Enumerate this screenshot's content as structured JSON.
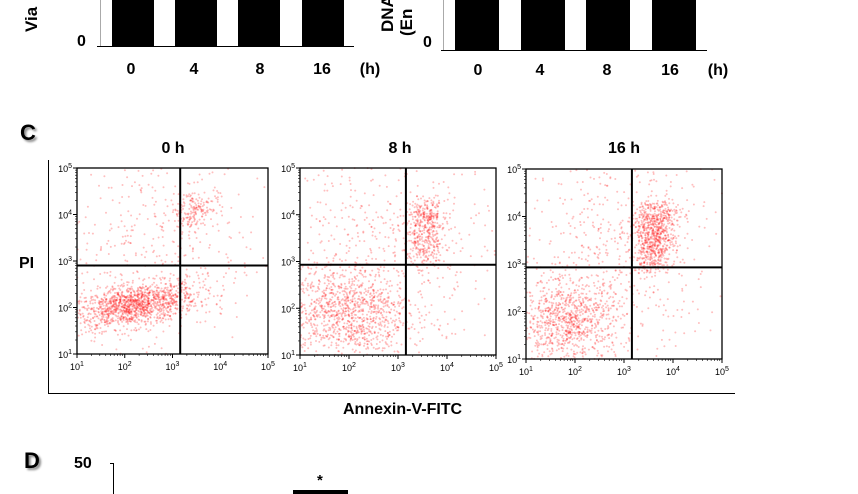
{
  "panel_a": {
    "ylabel": "Via",
    "y_zero": "0",
    "x_ticks": [
      "0",
      "4",
      "8",
      "16"
    ],
    "x_unit": "(h)"
  },
  "panel_b": {
    "ylabel_line1": "DNA",
    "ylabel_line2": "(En",
    "y_zero": "0",
    "x_ticks": [
      "0",
      "4",
      "8",
      "16"
    ],
    "x_unit": "(h)"
  },
  "panel_c": {
    "label": "C",
    "ylabel": "PI",
    "xlabel": "Annexin-V-FITC"
  },
  "panel_d": {
    "label": "D",
    "y_top": "50",
    "annotation": "*"
  },
  "chart_data": [
    {
      "type": "scatter",
      "title": "0 h",
      "xscale": "log",
      "yscale": "log",
      "xlim": [
        10,
        100000
      ],
      "ylim": [
        10,
        100000
      ],
      "x_ticks": [
        "10^1",
        "10^2",
        "10^3",
        "10^4",
        "10^5"
      ],
      "y_ticks": [
        "10^1",
        "10^2",
        "10^3",
        "10^4",
        "10^5"
      ],
      "gate": {
        "x": 1450,
        "y": 800
      },
      "point_color": "#ff0000",
      "clusters": [
        {
          "cx": 160,
          "cy": 110,
          "n": 1300,
          "sdx": 0.3,
          "sdy": 0.1
        },
        {
          "cx": 2800,
          "cy": 13000,
          "n": 180,
          "sdx": 0.12,
          "sdy": 0.1
        },
        {
          "cx": 400,
          "cy": 1500,
          "n": 450,
          "sdx": 0.5,
          "sdy": 0.6
        }
      ]
    },
    {
      "type": "scatter",
      "title": "8 h",
      "xscale": "log",
      "yscale": "log",
      "xlim": [
        10,
        100000
      ],
      "ylim": [
        10,
        100000
      ],
      "x_ticks": [
        "10^1",
        "10^2",
        "10^3",
        "10^4",
        "10^5"
      ],
      "y_ticks": [
        "10^1",
        "10^2",
        "10^3",
        "10^4",
        "10^5"
      ],
      "gate": {
        "x": 1450,
        "y": 850
      },
      "point_color": "#ff0000",
      "clusters": [
        {
          "cx": 90,
          "cy": 75,
          "n": 1000,
          "sdx": 0.28,
          "sdy": 0.22
        },
        {
          "cx": 4000,
          "cy": 10000,
          "n": 150,
          "sdx": 0.08,
          "sdy": 0.07
        },
        {
          "cx": 3500,
          "cy": 3000,
          "n": 300,
          "sdx": 0.1,
          "sdy": 0.18
        },
        {
          "cx": 500,
          "cy": 1500,
          "n": 550,
          "sdx": 0.5,
          "sdy": 0.6
        }
      ]
    },
    {
      "type": "scatter",
      "title": "16 h",
      "xscale": "log",
      "yscale": "log",
      "xlim": [
        10,
        100000
      ],
      "ylim": [
        10,
        100000
      ],
      "x_ticks": [
        "10^1",
        "10^2",
        "10^3",
        "10^4",
        "10^5"
      ],
      "y_ticks": [
        "10^1",
        "10^2",
        "10^3",
        "10^4",
        "10^5"
      ],
      "gate": {
        "x": 1450,
        "y": 850
      },
      "point_color": "#ff0000",
      "clusters": [
        {
          "cx": 70,
          "cy": 60,
          "n": 900,
          "sdx": 0.25,
          "sdy": 0.2
        },
        {
          "cx": 4000,
          "cy": 3000,
          "n": 600,
          "sdx": 0.1,
          "sdy": 0.15
        },
        {
          "cx": 5000,
          "cy": 11000,
          "n": 180,
          "sdx": 0.1,
          "sdy": 0.08
        },
        {
          "cx": 600,
          "cy": 2000,
          "n": 550,
          "sdx": 0.5,
          "sdy": 0.6
        }
      ]
    }
  ]
}
